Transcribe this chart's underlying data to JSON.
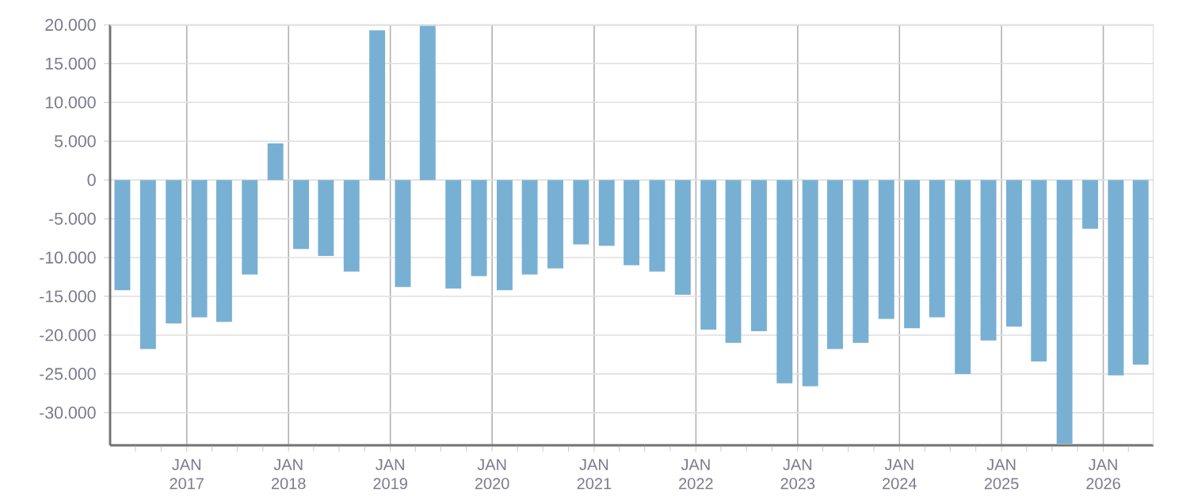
{
  "chart_data": {
    "type": "bar",
    "color": "#78b0d3",
    "grid": true,
    "x": [
      "2016-05-15",
      "2016-08-15",
      "2016-11-15",
      "2017-02-15",
      "2017-05-15",
      "2017-08-15",
      "2017-11-15",
      "2018-02-15",
      "2018-05-15",
      "2018-08-15",
      "2018-11-15",
      "2019-02-15",
      "2019-05-15",
      "2019-08-15",
      "2019-11-15",
      "2020-02-15",
      "2020-05-15",
      "2020-08-15",
      "2020-11-15",
      "2021-02-15",
      "2021-05-15",
      "2021-08-15",
      "2021-11-15",
      "2022-02-15",
      "2022-05-15",
      "2022-08-15",
      "2022-11-15",
      "2023-02-15",
      "2023-05-15",
      "2023-08-15",
      "2023-11-15",
      "2024-02-15",
      "2024-05-15",
      "2024-08-15",
      "2024-11-15",
      "2025-02-15",
      "2025-05-15",
      "2025-08-15",
      "2025-11-15",
      "2026-02-15",
      "2026-05-15"
    ],
    "values": [
      -14200,
      -21800,
      -18500,
      -17700,
      -18300,
      -12200,
      4700,
      -8900,
      -9800,
      -11800,
      19300,
      -13800,
      20000,
      -14000,
      -12400,
      -14200,
      -12200,
      -11400,
      -8300,
      -8500,
      -11000,
      -11800,
      -14800,
      -19300,
      -21000,
      -19500,
      -26200,
      -26600,
      -21800,
      -21000,
      -17900,
      -19100,
      -17700,
      -25000,
      -20700,
      -18900,
      -23400,
      -34000,
      -6300,
      -25200,
      -23800
    ],
    "xlim": [
      "2016-04",
      "2026-07"
    ],
    "xticks": [
      {
        "value": "2016-07",
        "label": null
      },
      {
        "value": "2016-10",
        "label": null
      },
      {
        "value": "2017-01",
        "label": "JAN 2017"
      },
      {
        "value": "2017-04",
        "label": null
      },
      {
        "value": "2017-07",
        "label": null
      },
      {
        "value": "2017-10",
        "label": null
      },
      {
        "value": "2018-01",
        "label": "JAN 2018"
      },
      {
        "value": "2018-04",
        "label": null
      },
      {
        "value": "2018-07",
        "label": null
      },
      {
        "value": "2018-10",
        "label": null
      },
      {
        "value": "2019-01",
        "label": "JAN 2019"
      },
      {
        "value": "2019-04",
        "label": null
      },
      {
        "value": "2019-07",
        "label": null
      },
      {
        "value": "2019-10",
        "label": null
      },
      {
        "value": "2020-01",
        "label": "JAN 2020"
      },
      {
        "value": "2020-04",
        "label": null
      },
      {
        "value": "2020-07",
        "label": null
      },
      {
        "value": "2020-10",
        "label": null
      },
      {
        "value": "2021-01",
        "label": "JAN 2021"
      },
      {
        "value": "2021-04",
        "label": null
      },
      {
        "value": "2021-07",
        "label": null
      },
      {
        "value": "2021-10",
        "label": null
      },
      {
        "value": "2022-01",
        "label": "JAN 2022"
      },
      {
        "value": "2022-04",
        "label": null
      },
      {
        "value": "2022-07",
        "label": null
      },
      {
        "value": "2022-10",
        "label": null
      },
      {
        "value": "2023-01",
        "label": "JAN 2023"
      },
      {
        "value": "2023-04",
        "label": null
      },
      {
        "value": "2023-07",
        "label": null
      },
      {
        "value": "2023-10",
        "label": null
      },
      {
        "value": "2024-01",
        "label": "JAN 2024"
      },
      {
        "value": "2024-04",
        "label": null
      },
      {
        "value": "2024-07",
        "label": null
      },
      {
        "value": "2024-10",
        "label": null
      },
      {
        "value": "2025-01",
        "label": "JAN 2025"
      },
      {
        "value": "2025-04",
        "label": null
      },
      {
        "value": "2025-07",
        "label": null
      },
      {
        "value": "2025-10",
        "label": null
      },
      {
        "value": "2026-01",
        "label": "JAN 2026"
      },
      {
        "value": "2026-04",
        "label": null
      }
    ],
    "ylim": [
      -34200,
      20000
    ],
    "yticks": [
      {
        "value": -30000,
        "label": "-30.000"
      },
      {
        "value": -25000,
        "label": "-25.000"
      },
      {
        "value": -20000,
        "label": "-20.000"
      },
      {
        "value": -15000,
        "label": "-15.000"
      },
      {
        "value": -10000,
        "label": "-10.000"
      },
      {
        "value": -5000,
        "label": "-5.000"
      },
      {
        "value": 0,
        "label": "0"
      },
      {
        "value": 5000,
        "label": "5.000"
      },
      {
        "value": 10000,
        "label": "10.000"
      },
      {
        "value": 15000,
        "label": "15.000"
      },
      {
        "value": 20000,
        "label": "20.000"
      }
    ]
  }
}
